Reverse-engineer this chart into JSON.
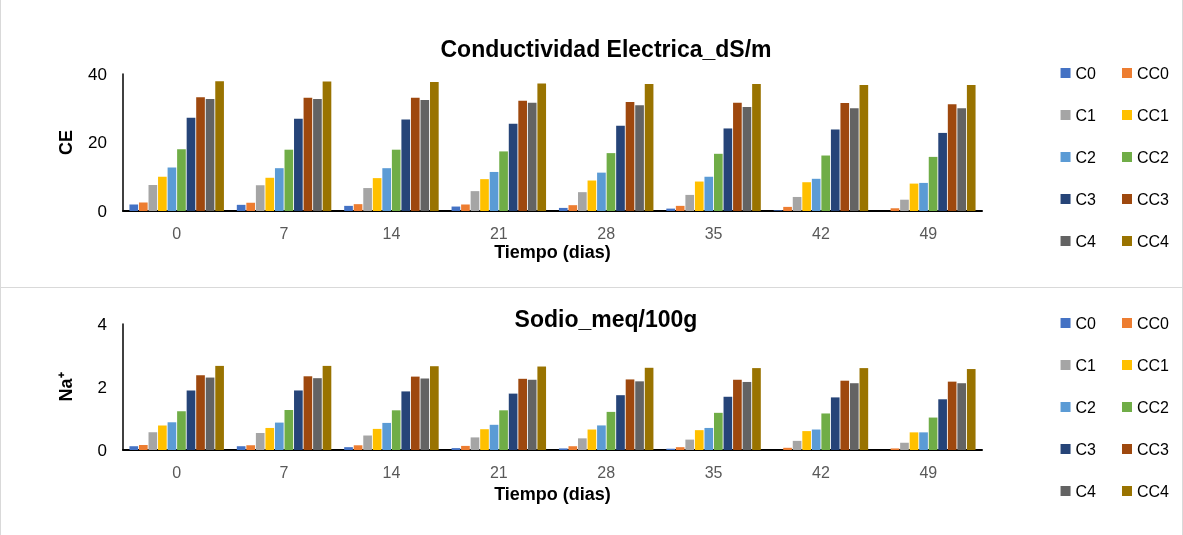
{
  "chart_data": [
    {
      "type": "bar",
      "title": "Conductividad Electrica_dS/m",
      "xlabel": "Tiempo (dias)",
      "ylabel": "CE",
      "categories": [
        "0",
        "7",
        "14",
        "21",
        "28",
        "35",
        "42",
        "49"
      ],
      "ylim": [
        0,
        40
      ],
      "yticks": [
        0,
        20,
        40
      ],
      "legend": "right",
      "series": [
        {
          "name": "C0",
          "color": "#4472c4",
          "values": [
            1.9,
            1.8,
            1.5,
            1.3,
            0.9,
            0.7,
            0.2,
            0
          ]
        },
        {
          "name": "CC0",
          "color": "#ed7d31",
          "values": [
            2.5,
            2.4,
            2.0,
            1.9,
            1.7,
            1.5,
            1.2,
            0.8
          ]
        },
        {
          "name": "C1",
          "color": "#a5a5a5",
          "values": [
            7.6,
            7.5,
            6.7,
            5.8,
            5.5,
            4.7,
            4.1,
            3.3
          ]
        },
        {
          "name": "CC1",
          "color": "#ffc000",
          "values": [
            10.0,
            9.7,
            9.6,
            9.3,
            8.9,
            8.6,
            8.4,
            8.0
          ]
        },
        {
          "name": "C2",
          "color": "#5b9bd5",
          "values": [
            12.7,
            12.5,
            12.5,
            11.4,
            11.2,
            10.0,
            9.4,
            8.2
          ]
        },
        {
          "name": "CC2",
          "color": "#70ad47",
          "values": [
            18.0,
            17.9,
            17.9,
            17.4,
            16.9,
            16.7,
            16.2,
            15.8
          ]
        },
        {
          "name": "C3",
          "color": "#264478",
          "values": [
            27.2,
            26.9,
            26.7,
            25.5,
            24.9,
            24.1,
            23.8,
            22.8
          ]
        },
        {
          "name": "CC3",
          "color": "#9e480e",
          "values": [
            33.2,
            33.1,
            33.1,
            32.2,
            31.8,
            31.6,
            31.5,
            31.2
          ]
        },
        {
          "name": "C4",
          "color": "#636363",
          "values": [
            32.7,
            32.7,
            32.4,
            31.6,
            30.9,
            30.4,
            30.0,
            30.0
          ]
        },
        {
          "name": "CC4",
          "color": "#997300",
          "values": [
            37.9,
            37.8,
            37.7,
            37.2,
            37.1,
            37.1,
            36.8,
            36.8
          ]
        }
      ]
    },
    {
      "type": "bar",
      "title": "Sodio_meq/100g",
      "xlabel": "Tiempo (dias)",
      "ylabel": "Na⁺",
      "categories": [
        "0",
        "7",
        "14",
        "21",
        "28",
        "35",
        "42",
        "49"
      ],
      "ylim": [
        0,
        4
      ],
      "yticks": [
        0,
        2,
        4
      ],
      "legend": "right",
      "series": [
        {
          "name": "C0",
          "color": "#4472c4",
          "values": [
            0.12,
            0.12,
            0.09,
            0.06,
            0.05,
            0.04,
            null,
            0
          ]
        },
        {
          "name": "CC0",
          "color": "#ed7d31",
          "values": [
            0.16,
            0.15,
            0.15,
            0.13,
            0.12,
            0.09,
            0.07,
            0.05
          ]
        },
        {
          "name": "C1",
          "color": "#a5a5a5",
          "values": [
            0.56,
            0.54,
            0.46,
            0.4,
            0.37,
            0.33,
            0.29,
            0.23
          ]
        },
        {
          "name": "CC1",
          "color": "#ffc000",
          "values": [
            0.78,
            0.7,
            0.67,
            0.66,
            0.65,
            0.63,
            0.6,
            0.56
          ]
        },
        {
          "name": "C2",
          "color": "#5b9bd5",
          "values": [
            0.88,
            0.87,
            0.86,
            0.8,
            0.78,
            0.7,
            0.65,
            0.56
          ]
        },
        {
          "name": "CC2",
          "color": "#70ad47",
          "values": [
            1.23,
            1.27,
            1.26,
            1.26,
            1.21,
            1.18,
            1.16,
            1.03
          ]
        },
        {
          "name": "C3",
          "color": "#264478",
          "values": [
            1.89,
            1.89,
            1.86,
            1.79,
            1.74,
            1.69,
            1.67,
            1.61
          ]
        },
        {
          "name": "CC3",
          "color": "#9e480e",
          "values": [
            2.37,
            2.34,
            2.33,
            2.26,
            2.24,
            2.23,
            2.2,
            2.17
          ]
        },
        {
          "name": "C4",
          "color": "#636363",
          "values": [
            2.3,
            2.28,
            2.27,
            2.23,
            2.18,
            2.16,
            2.12,
            2.12
          ]
        },
        {
          "name": "CC4",
          "color": "#997300",
          "values": [
            2.67,
            2.67,
            2.66,
            2.65,
            2.61,
            2.6,
            2.6,
            2.57
          ]
        }
      ]
    }
  ]
}
